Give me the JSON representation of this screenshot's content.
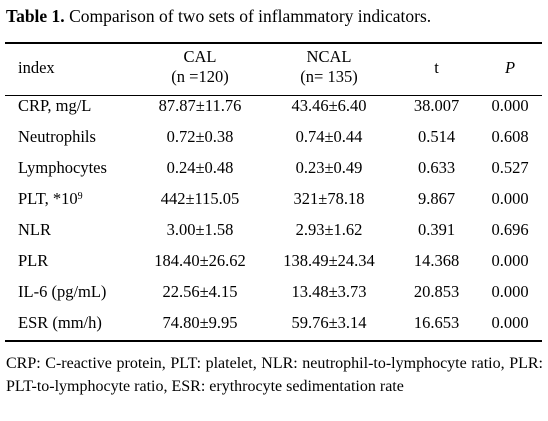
{
  "caption": {
    "label": "Table 1.",
    "text": " Comparison of two sets of inflammatory indicators."
  },
  "header": {
    "index": "index",
    "cal_line1": "CAL",
    "cal_line2": "(n =120)",
    "ncal_line1": "NCAL",
    "ncal_line2": "(n= 135)",
    "t": "t",
    "p": "P"
  },
  "rows": [
    {
      "index": "CRP, mg/L",
      "cal": "87.87±11.76",
      "ncal": "43.46±6.40",
      "t": "38.007",
      "p": "0.000"
    },
    {
      "index": "Neutrophils",
      "cal": "0.72±0.38",
      "ncal": "0.74±0.44",
      "t": "0.514",
      "p": "0.608"
    },
    {
      "index": "Lymphocytes",
      "cal": "0.24±0.48",
      "ncal": "0.23±0.49",
      "t": "0.633",
      "p": "0.527"
    },
    {
      "index": "PLT, *10",
      "index_sup": "9",
      "cal": "442±115.05",
      "ncal": "321±78.18",
      "t": "9.867",
      "p": "0.000"
    },
    {
      "index": "NLR",
      "cal": "3.00±1.58",
      "ncal": "2.93±1.62",
      "t": "0.391",
      "p": "0.696"
    },
    {
      "index": "PLR",
      "cal": "184.40±26.62",
      "ncal": "138.49±24.34",
      "t": "14.368",
      "p": "0.000"
    },
    {
      "index": "IL-6 (pg/mL)",
      "cal": "22.56±4.15",
      "ncal": "13.48±3.73",
      "t": "20.853",
      "p": "0.000"
    },
    {
      "index": "ESR (mm/h)",
      "cal": "74.80±9.95",
      "ncal": "59.76±3.14",
      "t": "16.653",
      "p": "0.000"
    }
  ],
  "footnote": "CRP: C-reactive protein, PLT: platelet, NLR: neutrophil-to-lymphocyte ratio, PLR: PLT-to-lymphocyte ratio, ESR: erythrocyte sedimentation rate"
}
